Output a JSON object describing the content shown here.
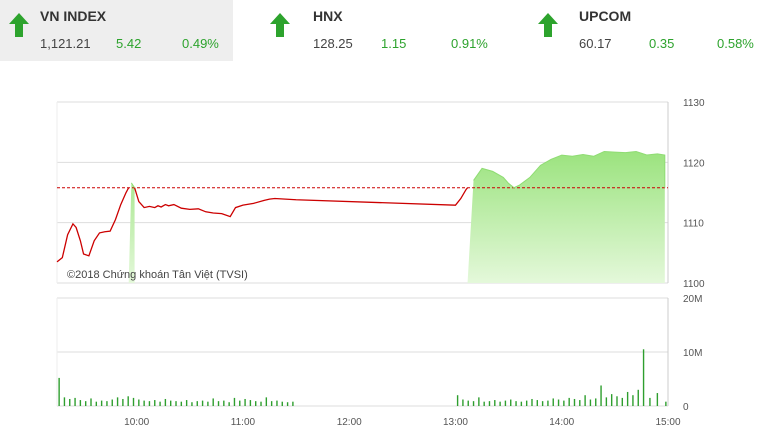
{
  "indices": [
    {
      "name": "VN INDEX",
      "value": "1,121.21",
      "change": "5.42",
      "percent": "0.49%",
      "direction": "up",
      "active": true
    },
    {
      "name": "HNX",
      "value": "128.25",
      "change": "1.15",
      "percent": "0.91%",
      "direction": "up",
      "active": false
    },
    {
      "name": "UPCOM",
      "value": "60.17",
      "change": "0.35",
      "percent": "0.58%",
      "direction": "up",
      "active": false
    }
  ],
  "colors": {
    "up": "#2da32d",
    "down": "#cc0000",
    "reference": "#cc0000",
    "fill": "#a8e88e",
    "volume": "#2e9e2e"
  },
  "chart_data": {
    "type": "line",
    "copyright": "©2018 Chứng khoán Tân Việt (TVSI)",
    "reference_value": 1115.79,
    "ylim": [
      1100,
      1130
    ],
    "yticks": [
      "1130",
      "1120",
      "1110",
      "1100"
    ],
    "xlim": [
      9.25,
      15.0
    ],
    "xticks": [
      {
        "value": 10,
        "label": "10:00"
      },
      {
        "value": 11,
        "label": "11:00"
      },
      {
        "value": 12,
        "label": "12:00"
      },
      {
        "value": 13,
        "label": "13:00"
      },
      {
        "value": 14,
        "label": "14:00"
      },
      {
        "value": 15,
        "label": "15:00"
      }
    ],
    "series": [
      {
        "x": [
          9.25,
          9.3,
          9.35,
          9.4,
          9.43,
          9.47,
          9.5,
          9.55,
          9.6,
          9.65,
          9.7,
          9.75,
          9.8,
          9.85,
          9.9,
          9.95,
          9.98,
          10.02,
          10.07,
          10.12,
          10.17,
          10.2,
          10.23,
          10.27,
          10.3,
          10.35,
          10.42,
          10.5,
          10.58,
          10.65,
          10.72,
          10.8,
          10.88,
          10.93,
          11.0,
          11.1,
          11.2,
          11.25,
          11.3,
          11.4,
          11.5,
          13.0,
          13.05,
          13.1,
          13.17,
          13.25,
          13.35,
          13.45,
          13.5,
          13.55,
          13.6,
          13.7,
          13.8,
          13.9,
          14.0,
          14.1,
          14.2,
          14.3,
          14.4,
          14.5,
          14.6,
          14.7,
          14.75,
          14.8,
          14.9,
          14.97
        ],
        "y": [
          1103.5,
          1104.2,
          1108.0,
          1109.8,
          1109.2,
          1107.0,
          1104.8,
          1104.5,
          1107.0,
          1108.3,
          1108.5,
          1108.6,
          1110.5,
          1113.0,
          1115.0,
          1116.6,
          1115.8,
          1113.5,
          1112.5,
          1112.7,
          1112.5,
          1112.8,
          1112.6,
          1113.0,
          1112.8,
          1113.0,
          1112.4,
          1112.2,
          1112.3,
          1111.8,
          1111.6,
          1111.5,
          1111.0,
          1112.5,
          1112.9,
          1113.2,
          1113.7,
          1113.9,
          1114.0,
          1113.9,
          1113.8,
          1112.9,
          1114.0,
          1115.5,
          1117.0,
          1119.0,
          1118.5,
          1117.5,
          1116.5,
          1115.8,
          1116.2,
          1117.5,
          1119.5,
          1120.5,
          1121.2,
          1121.0,
          1121.3,
          1121.0,
          1121.8,
          1121.7,
          1121.6,
          1121.8,
          1121.5,
          1121.21,
          1121.4,
          1121.21
        ]
      }
    ],
    "volume": {
      "ylim": [
        0,
        20
      ],
      "yticks": [
        "20M",
        "10M",
        "0"
      ],
      "unit": "M",
      "x": [
        9.27,
        9.32,
        9.37,
        9.42,
        9.47,
        9.52,
        9.57,
        9.62,
        9.67,
        9.72,
        9.77,
        9.82,
        9.87,
        9.92,
        9.97,
        10.02,
        10.07,
        10.12,
        10.17,
        10.22,
        10.27,
        10.32,
        10.37,
        10.42,
        10.47,
        10.52,
        10.57,
        10.62,
        10.67,
        10.72,
        10.77,
        10.82,
        10.87,
        10.92,
        10.97,
        11.02,
        11.07,
        11.12,
        11.17,
        11.22,
        11.27,
        11.32,
        11.37,
        11.42,
        11.47,
        13.02,
        13.07,
        13.12,
        13.17,
        13.22,
        13.27,
        13.32,
        13.37,
        13.42,
        13.47,
        13.52,
        13.57,
        13.62,
        13.67,
        13.72,
        13.77,
        13.82,
        13.87,
        13.92,
        13.97,
        14.02,
        14.07,
        14.12,
        14.17,
        14.22,
        14.27,
        14.32,
        14.37,
        14.42,
        14.47,
        14.52,
        14.57,
        14.62,
        14.67,
        14.72,
        14.77,
        14.83,
        14.9,
        14.98
      ],
      "values": [
        5.2,
        1.6,
        1.3,
        1.5,
        1.1,
        0.9,
        1.4,
        0.8,
        1.0,
        0.9,
        1.2,
        1.6,
        1.3,
        1.8,
        1.5,
        1.2,
        1.0,
        0.9,
        1.1,
        0.8,
        1.3,
        1.0,
        0.9,
        0.8,
        1.1,
        0.7,
        0.9,
        1.0,
        0.8,
        1.4,
        0.9,
        1.0,
        0.7,
        1.5,
        1.0,
        1.3,
        1.1,
        0.9,
        0.8,
        1.6,
        0.9,
        1.0,
        0.8,
        0.7,
        0.8,
        2.0,
        1.2,
        1.0,
        0.9,
        1.6,
        0.8,
        0.9,
        1.1,
        0.8,
        1.0,
        1.2,
        0.9,
        0.8,
        1.0,
        1.3,
        1.1,
        0.9,
        1.0,
        1.4,
        1.2,
        1.0,
        1.5,
        1.3,
        1.1,
        2.0,
        1.2,
        1.4,
        3.8,
        1.6,
        2.2,
        1.8,
        1.5,
        2.6,
        2.0,
        3.0,
        10.5,
        1.5,
        2.4,
        0.8
      ]
    }
  }
}
